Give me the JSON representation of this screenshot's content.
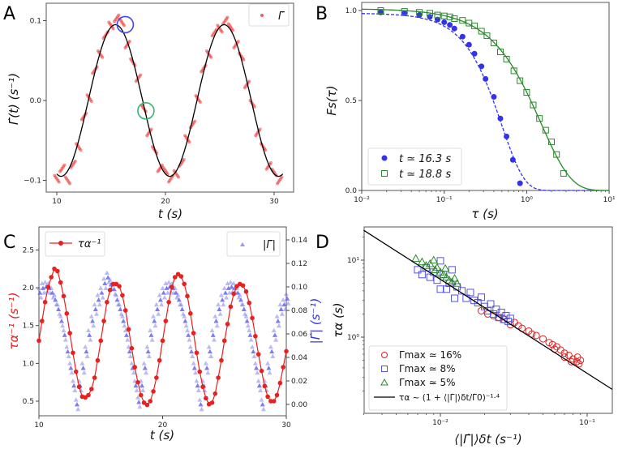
{
  "chart_data": [
    {
      "panel": "A",
      "type": "scatter",
      "xlabel": "t (s)",
      "ylabel": "Γ̇(t) (s⁻¹)",
      "xlim": [
        9,
        32
      ],
      "ylim": [
        -0.115,
        0.12
      ],
      "xticks": [
        "10",
        "20",
        "30"
      ],
      "xtick_values": [
        10,
        20,
        30
      ],
      "yticks": [
        "0.1",
        "0.0",
        "−0.1"
      ],
      "ytick_values": [
        0.1,
        0.0,
        -0.1
      ],
      "legend": {
        "label": "Γ̇",
        "placement": "top-right"
      },
      "series": [
        {
          "name": "Γ̇",
          "color": "#f03030",
          "t": [
            10,
            10.5,
            11,
            11.5,
            12,
            12.5,
            13,
            13.5,
            14,
            14.5,
            15,
            15.5,
            16,
            16.5,
            17,
            17.5,
            18,
            18.5,
            19,
            19.5,
            20,
            20.5,
            21,
            21.5,
            22,
            22.5,
            23,
            23.5,
            24,
            24.5,
            25,
            25.5,
            26,
            26.5,
            27,
            27.5,
            28,
            28.5,
            29,
            29.5,
            30,
            30.5
          ],
          "values": [
            -0.098,
            -0.085,
            -0.1,
            -0.08,
            -0.058,
            -0.02,
            0.003,
            0.038,
            0.058,
            0.082,
            0.094,
            0.103,
            0.098,
            0.07,
            0.048,
            0.028,
            -0.01,
            -0.04,
            -0.062,
            -0.085,
            -0.088,
            -0.098,
            -0.092,
            -0.078,
            -0.048,
            -0.03,
            0.002,
            0.04,
            0.058,
            0.085,
            0.09,
            0.1,
            0.092,
            0.07,
            0.055,
            0.02,
            -0.004,
            -0.04,
            -0.058,
            -0.082,
            -0.09,
            -0.1
          ]
        }
      ],
      "fit": {
        "type": "cosine",
        "amplitude": 0.095,
        "period": 10,
        "trough_at": 10.4,
        "range": [
          10,
          30.8
        ],
        "color": "#000000"
      },
      "annotations": [
        {
          "shape": "circle",
          "t": 16.3,
          "value": 0.095,
          "color": "#4444ee"
        },
        {
          "shape": "circle",
          "t": 18.2,
          "value": -0.013,
          "color": "#3cb371"
        }
      ]
    },
    {
      "panel": "B",
      "type": "scatter",
      "xscale": "log",
      "xlabel": "τ (s)",
      "ylabel": "Fs(τ)",
      "xlim": [
        0.01,
        10
      ],
      "ylim": [
        0,
        1.05
      ],
      "xticks": [
        "10⁻²",
        "10⁻¹",
        "10⁰",
        "10¹"
      ],
      "xtick_values": [
        0.01,
        0.1,
        1,
        10
      ],
      "yticks": [
        "1.0",
        "0.5",
        "0.0"
      ],
      "ytick_values": [
        1.0,
        0.5,
        0.0
      ],
      "legend_placement": "lower-left",
      "series": [
        {
          "name": "t ≃ 16.3 s",
          "marker": "filled-circle",
          "color": "#3333ee",
          "fit_style": "dashed",
          "tau": [
            0.017,
            0.033,
            0.05,
            0.067,
            0.083,
            0.1,
            0.117,
            0.133,
            0.167,
            0.2,
            0.233,
            0.283,
            0.317,
            0.4,
            0.48,
            0.57,
            0.68,
            0.83
          ],
          "values": [
            0.99,
            0.985,
            0.975,
            0.965,
            0.95,
            0.935,
            0.92,
            0.9,
            0.855,
            0.81,
            0.76,
            0.69,
            0.62,
            0.52,
            0.4,
            0.3,
            0.17,
            0.04
          ],
          "fit": {
            "amplitude": 0.985,
            "tau_alpha": 0.5,
            "beta": 1.6
          }
        },
        {
          "name": "t ≃ 18.8 s",
          "marker": "open-square",
          "color": "#2a8a2a",
          "fit_style": "solid",
          "tau": [
            0.017,
            0.033,
            0.05,
            0.067,
            0.083,
            0.1,
            0.117,
            0.133,
            0.167,
            0.2,
            0.233,
            0.283,
            0.33,
            0.4,
            0.48,
            0.57,
            0.7,
            0.83,
            1.0,
            1.2,
            1.43,
            1.7,
            2.0,
            2.3,
            2.8
          ],
          "values": [
            1.0,
            0.995,
            0.99,
            0.985,
            0.975,
            0.97,
            0.965,
            0.955,
            0.945,
            0.93,
            0.915,
            0.885,
            0.86,
            0.82,
            0.77,
            0.73,
            0.665,
            0.61,
            0.545,
            0.475,
            0.4,
            0.335,
            0.27,
            0.2,
            0.095
          ],
          "fit": {
            "amplitude": 1.01,
            "tau_alpha": 1.5,
            "beta": 1.2
          }
        }
      ]
    },
    {
      "panel": "C",
      "type": "line",
      "xlabel": "t (s)",
      "ylabel_left": "τα⁻¹ (s⁻¹)",
      "ylabel_right": "|Γ̇| (s⁻¹)",
      "xlim": [
        10,
        30
      ],
      "ylim_left": [
        0.31,
        2.8
      ],
      "ylim_right": [
        -0.0097,
        0.146
      ],
      "xticks": [
        "10",
        "20",
        "30"
      ],
      "xtick_values": [
        10,
        20,
        30
      ],
      "yticks_left": [
        "0.5",
        "1.0",
        "1.5",
        "2.0",
        "2.5"
      ],
      "ytick_values_left": [
        0.5,
        1.0,
        1.5,
        2.0,
        2.5
      ],
      "yticks_right": [
        "0.00",
        "0.02",
        "0.04",
        "0.06",
        "0.08",
        "0.10",
        "0.12",
        "0.14"
      ],
      "ytick_values_right": [
        0,
        0.02,
        0.04,
        0.06,
        0.08,
        0.1,
        0.12,
        0.14
      ],
      "t": [
        10,
        10.25,
        10.5,
        10.75,
        11,
        11.25,
        11.5,
        11.75,
        12,
        12.25,
        12.5,
        12.75,
        13,
        13.25,
        13.5,
        13.75,
        14,
        14.25,
        14.5,
        14.75,
        15,
        15.25,
        15.5,
        15.75,
        16,
        16.25,
        16.5,
        16.75,
        17,
        17.25,
        17.5,
        17.75,
        18,
        18.25,
        18.5,
        18.75,
        19,
        19.25,
        19.5,
        19.75,
        20,
        20.25,
        20.5,
        20.75,
        21,
        21.25,
        21.5,
        21.75,
        22,
        22.25,
        22.5,
        22.75,
        23,
        23.25,
        23.5,
        23.75,
        24,
        24.25,
        24.5,
        24.75,
        25,
        25.25,
        25.5,
        25.75,
        26,
        26.25,
        26.5,
        26.75,
        27,
        27.25,
        27.5,
        27.75,
        28,
        28.25,
        28.5,
        28.75,
        29,
        29.25,
        29.5,
        29.75,
        30
      ],
      "series": [
        {
          "name": "τα⁻¹",
          "axis": "left",
          "color": "#e82020",
          "marker": "circle-line",
          "values": [
            1.3,
            1.56,
            1.81,
            2.01,
            2.14,
            2.25,
            2.22,
            2.07,
            1.89,
            1.66,
            1.4,
            1.14,
            0.89,
            0.69,
            0.56,
            0.55,
            0.58,
            0.66,
            0.81,
            1.04,
            1.3,
            1.56,
            1.81,
            1.97,
            2.05,
            2.05,
            2.02,
            1.9,
            1.7,
            1.45,
            1.2,
            0.95,
            0.75,
            0.58,
            0.48,
            0.45,
            0.5,
            0.63,
            0.81,
            1.04,
            1.3,
            1.56,
            1.81,
            2.01,
            2.14,
            2.18,
            2.15,
            2.05,
            1.89,
            1.66,
            1.4,
            1.14,
            0.89,
            0.69,
            0.54,
            0.46,
            0.48,
            0.6,
            0.81,
            1.04,
            1.3,
            1.52,
            1.75,
            1.92,
            2.02,
            2.05,
            2.03,
            1.95,
            1.8,
            1.6,
            1.36,
            1.12,
            0.9,
            0.7,
            0.56,
            0.5,
            0.5,
            0.58,
            0.74,
            0.95,
            1.16
          ]
        },
        {
          "name": "|Γ̇|",
          "axis": "right",
          "color": "#6666ee",
          "marker": "triangle",
          "values": [
            0.095,
            0.099,
            0.1,
            0.099,
            0.095,
            0.089,
            0.081,
            0.071,
            0.059,
            0.045,
            0.031,
            0.016,
            0.0,
            0.016,
            0.031,
            0.045,
            0.059,
            0.071,
            0.081,
            0.089,
            0.095,
            0.103,
            0.108,
            0.102,
            0.098,
            0.089,
            0.081,
            0.071,
            0.059,
            0.045,
            0.031,
            0.016,
            0.002,
            0.016,
            0.031,
            0.045,
            0.059,
            0.071,
            0.081,
            0.089,
            0.095,
            0.099,
            0.1,
            0.099,
            0.095,
            0.089,
            0.081,
            0.071,
            0.059,
            0.045,
            0.031,
            0.016,
            0.0,
            0.016,
            0.031,
            0.045,
            0.059,
            0.071,
            0.081,
            0.089,
            0.095,
            0.099,
            0.1,
            0.099,
            0.095,
            0.089,
            0.081,
            0.071,
            0.059,
            0.045,
            0.031,
            0.016,
            0.0,
            0.016,
            0.031,
            0.045,
            0.059,
            0.071,
            0.081,
            0.085,
            0.09
          ]
        }
      ]
    },
    {
      "panel": "D",
      "type": "scatter",
      "xscale": "log",
      "yscale": "log",
      "xlabel": "⟨|Γ̇|⟩δt (s⁻¹)",
      "ylabel": "τα (s)",
      "xlim": [
        0.003,
        0.148
      ],
      "ylim": [
        0.1,
        27
      ],
      "xticks": [
        "10⁻²",
        "10⁻¹"
      ],
      "xtick_values": [
        0.01,
        0.1
      ],
      "yticks": [
        "10¹",
        "10⁰"
      ],
      "ytick_values": [
        10,
        1
      ],
      "legend_placement": "lower-left",
      "series": [
        {
          "name": "Γmax ≃ 16%",
          "marker": "open-circle",
          "color": "#e02020",
          "x": [
            0.019,
            0.021,
            0.023,
            0.025,
            0.027,
            0.03,
            0.032,
            0.034,
            0.036,
            0.04,
            0.042,
            0.045,
            0.05,
            0.055,
            0.058,
            0.062,
            0.066,
            0.07,
            0.075,
            0.08,
            0.085,
            0.088,
            0.09,
            0.086,
            0.078,
            0.07,
            0.06
          ],
          "y": [
            2.2,
            2.0,
            1.9,
            1.8,
            1.7,
            1.45,
            1.55,
            1.4,
            1.3,
            1.2,
            1.1,
            1.05,
            0.95,
            0.85,
            0.8,
            0.75,
            0.68,
            0.62,
            0.58,
            0.52,
            0.48,
            0.45,
            0.5,
            0.55,
            0.48,
            0.55,
            0.7
          ]
        },
        {
          "name": "Γmax ≃ 8%",
          "marker": "open-square",
          "color": "#5555dd",
          "x": [
            0.007,
            0.0075,
            0.008,
            0.0085,
            0.009,
            0.0095,
            0.01,
            0.0105,
            0.011,
            0.0115,
            0.012,
            0.013,
            0.014,
            0.015,
            0.016,
            0.017,
            0.018,
            0.019,
            0.02,
            0.021,
            0.022,
            0.023,
            0.024,
            0.025,
            0.026,
            0.027,
            0.028,
            0.029,
            0.03,
            0.0125,
            0.01
          ],
          "y": [
            7.5,
            6.5,
            8,
            6,
            7,
            5.5,
            9.8,
            6.5,
            4.2,
            5,
            7.5,
            4.5,
            4,
            3.2,
            3.8,
            3,
            2.8,
            3.3,
            2.5,
            2.2,
            2.7,
            2.0,
            2.3,
            1.8,
            2.1,
            1.7,
            1.9,
            1.6,
            1.75,
            3.2,
            4.2
          ]
        },
        {
          "name": "Γmax ≃ 5%",
          "marker": "open-triangle",
          "color": "#2a8a2a",
          "x": [
            0.0068,
            0.0075,
            0.008,
            0.0085,
            0.009,
            0.0095,
            0.01,
            0.0105,
            0.011,
            0.0115,
            0.012,
            0.0125,
            0.013,
            0.0092,
            0.0108
          ],
          "y": [
            10.5,
            9.5,
            8.5,
            9,
            10,
            8,
            7,
            6.5,
            6,
            5.5,
            5.2,
            5.8,
            5,
            7.5,
            7.8
          ]
        }
      ],
      "fit": {
        "name": "τα ~ (1 + ⟨|Γ̇|⟩δt/Γ̇0)⁻¹·⁴",
        "color": "#000000",
        "x": [
          0.003,
          0.148
        ],
        "y": [
          24.5,
          0.21
        ]
      }
    }
  ],
  "panels": {
    "A": "A",
    "B": "B",
    "C": "C",
    "D": "D"
  }
}
